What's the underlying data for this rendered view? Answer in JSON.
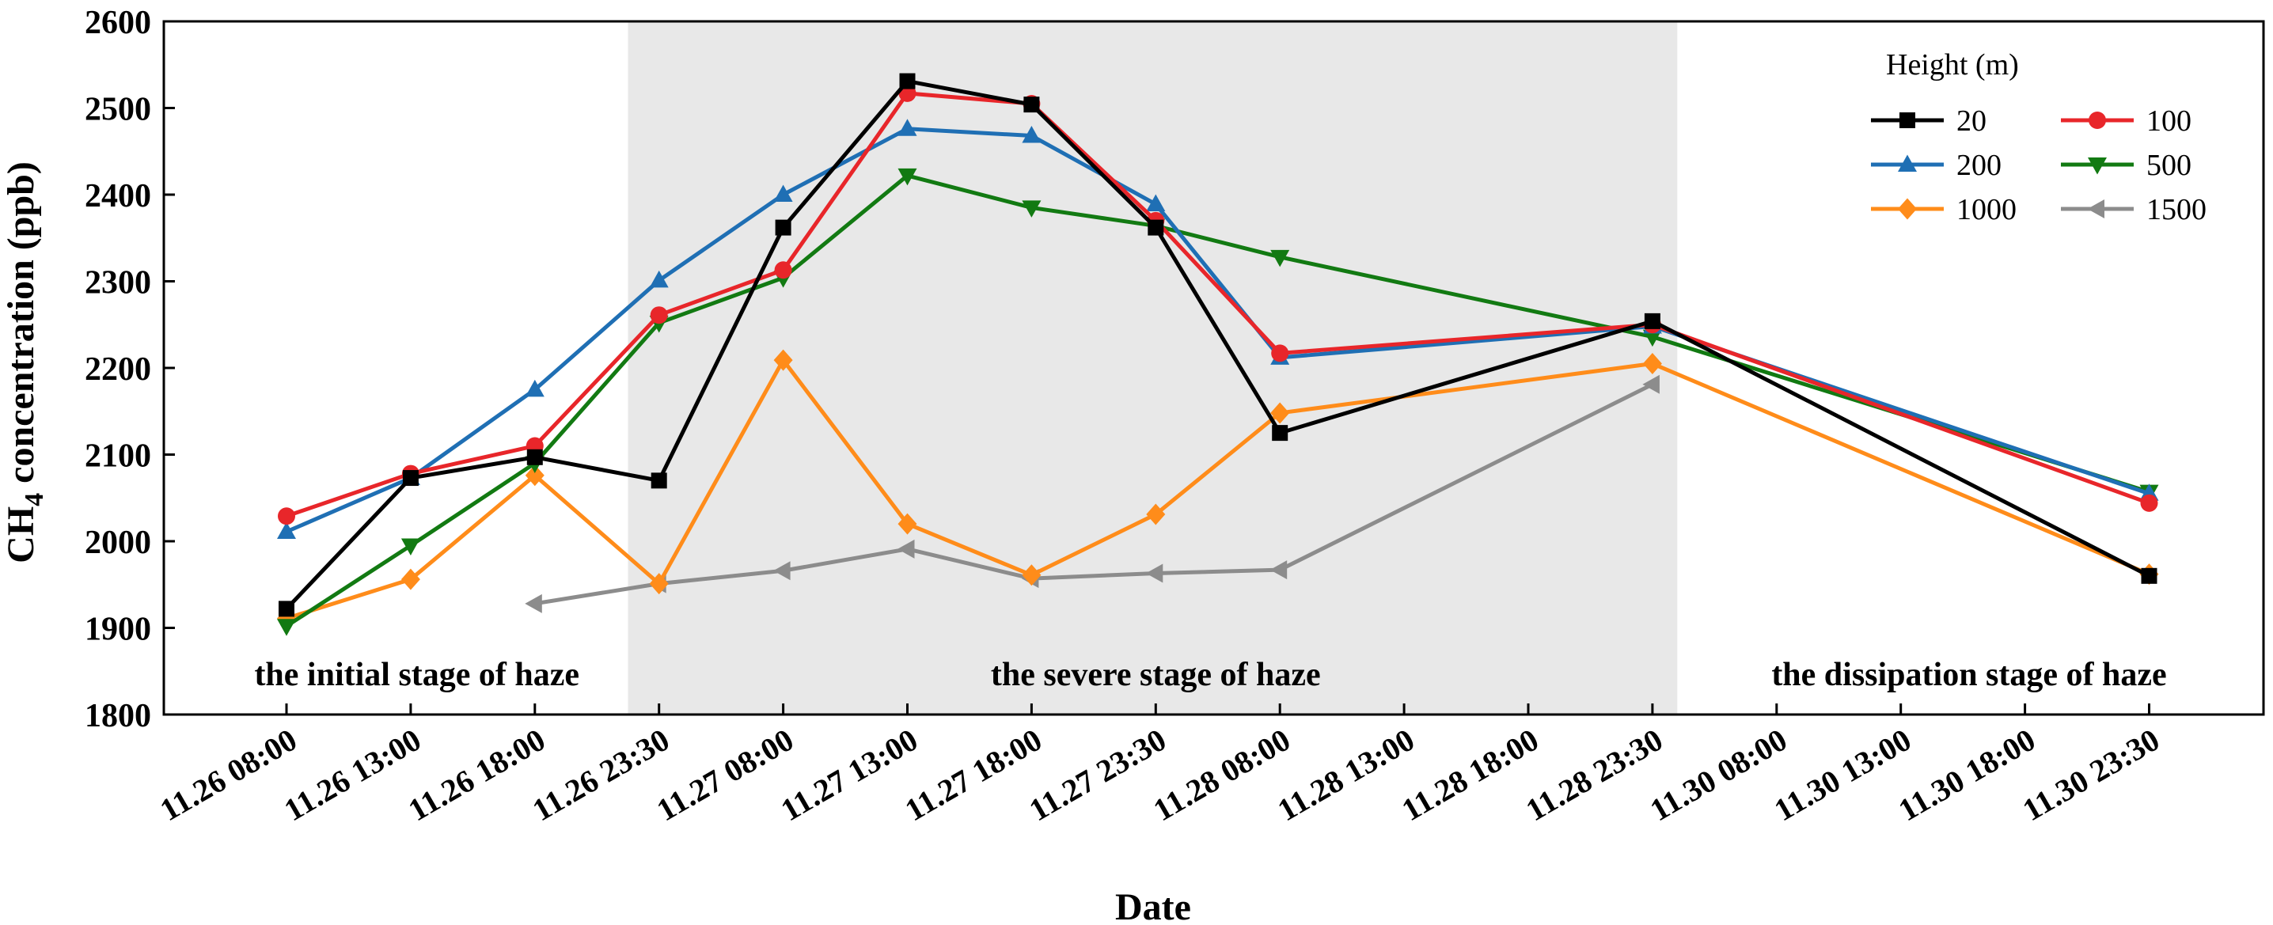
{
  "chart_data": {
    "type": "line",
    "xlabel": "Date",
    "ylabel_main": "CH",
    "ylabel_sub": "4",
    "ylabel_rest": " concentration (ppb)",
    "ylim": [
      1800,
      2600
    ],
    "yticks": [
      1800,
      1900,
      2000,
      2100,
      2200,
      2300,
      2400,
      2500,
      2600
    ],
    "categories": [
      "11.26 08:00",
      "11.26 13:00",
      "11.26 18:00",
      "11.26 23:30",
      "11.27 08:00",
      "11.27 13:00",
      "11.27 18:00",
      "11.27 23:30",
      "11.28 08:00",
      "11.28 13:00",
      "11.28 18:00",
      "11.28 23:30",
      "11.30 08:00",
      "11.30 13:00",
      "11.30 18:00",
      "11.30 23:30"
    ],
    "legend_title": "Height (m)",
    "legend_position": "top-right",
    "shaded_region": {
      "from_index": 2.75,
      "to_index": 11.2,
      "color": "#e8e8e8"
    },
    "stage_labels": [
      {
        "text": "the initial stage of haze",
        "x_index": 1.05
      },
      {
        "text": "the severe stage of haze",
        "x_index": 7.0
      },
      {
        "text": "the dissipation stage of haze",
        "x_index": 13.55
      }
    ],
    "series": [
      {
        "name": "20",
        "color": "#000000",
        "marker": "square",
        "points": [
          [
            0,
            1922
          ],
          [
            1,
            2073
          ],
          [
            2,
            2097
          ],
          [
            3,
            2070
          ],
          [
            4,
            2362
          ],
          [
            5,
            2531
          ],
          [
            6,
            2504
          ],
          [
            7,
            2362
          ],
          [
            8,
            2125
          ],
          [
            11,
            2254
          ],
          [
            15,
            1960
          ]
        ]
      },
      {
        "name": "100",
        "color": "#e8262a",
        "marker": "circle",
        "points": [
          [
            0,
            2029
          ],
          [
            1,
            2078
          ],
          [
            2,
            2110
          ],
          [
            3,
            2261
          ],
          [
            4,
            2313
          ],
          [
            5,
            2517
          ],
          [
            6,
            2505
          ],
          [
            7,
            2370
          ],
          [
            8,
            2217
          ],
          [
            11,
            2250
          ],
          [
            15,
            2044
          ]
        ]
      },
      {
        "name": "200",
        "color": "#1f6fb4",
        "marker": "triangle-up",
        "points": [
          [
            0,
            2011
          ],
          [
            1,
            2073
          ],
          [
            2,
            2175
          ],
          [
            3,
            2301
          ],
          [
            4,
            2400
          ],
          [
            5,
            2476
          ],
          [
            6,
            2468
          ],
          [
            7,
            2389
          ],
          [
            8,
            2212
          ],
          [
            11,
            2248
          ],
          [
            15,
            2055
          ]
        ]
      },
      {
        "name": "500",
        "color": "#127a12",
        "marker": "triangle-down",
        "points": [
          [
            0,
            1902
          ],
          [
            1,
            1995
          ],
          [
            2,
            2090
          ],
          [
            3,
            2252
          ],
          [
            4,
            2304
          ],
          [
            5,
            2422
          ],
          [
            6,
            2385
          ],
          [
            7,
            2364
          ],
          [
            8,
            2328
          ],
          [
            11,
            2236
          ],
          [
            15,
            2057
          ]
        ]
      },
      {
        "name": "1000",
        "color": "#ff8c1a",
        "marker": "diamond",
        "points": [
          [
            0,
            1911
          ],
          [
            1,
            1956
          ],
          [
            2,
            2076
          ],
          [
            3,
            1951
          ],
          [
            4,
            2209
          ],
          [
            5,
            2020
          ],
          [
            6,
            1961
          ],
          [
            7,
            2031
          ],
          [
            8,
            2148
          ],
          [
            11,
            2205
          ],
          [
            15,
            1962
          ]
        ]
      },
      {
        "name": "1500",
        "color": "#8c8c8c",
        "marker": "triangle-left",
        "points": [
          [
            2,
            1928
          ],
          [
            3,
            1951
          ],
          [
            4,
            1966
          ],
          [
            5,
            1991
          ],
          [
            6,
            1957
          ],
          [
            7,
            1963
          ],
          [
            8,
            1967
          ],
          [
            11,
            2181
          ]
        ]
      }
    ]
  }
}
